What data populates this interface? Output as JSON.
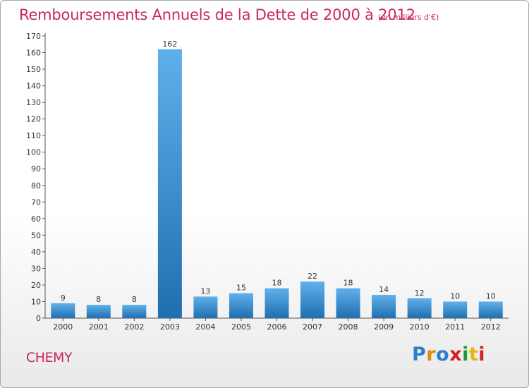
{
  "header": {
    "title": "Remboursements Annuels de la Dette de 2000 à 2012",
    "subtitle": "(en milliers d'€)"
  },
  "footer": {
    "commune": "CHEMY",
    "logo": "Proxiti"
  },
  "colors": {
    "title": "#c8285e",
    "bar_light": "#5fb0ea",
    "bar_dark": "#1f6fb1",
    "axis": "#555555"
  },
  "chart_data": {
    "type": "bar",
    "title": "Remboursements Annuels de la Dette de 2000 à 2012",
    "xlabel": "",
    "ylabel": "",
    "categories": [
      "2000",
      "2001",
      "2002",
      "2003",
      "2004",
      "2005",
      "2006",
      "2007",
      "2008",
      "2009",
      "2010",
      "2011",
      "2012"
    ],
    "values": [
      9,
      8,
      8,
      162,
      13,
      15,
      18,
      22,
      18,
      14,
      12,
      10,
      10
    ],
    "ylim": [
      0,
      170
    ],
    "yticks": [
      0,
      10,
      20,
      30,
      40,
      50,
      60,
      70,
      80,
      90,
      100,
      110,
      120,
      130,
      140,
      150,
      160,
      170
    ],
    "grid": false,
    "legend": "none",
    "data_labels": true
  }
}
